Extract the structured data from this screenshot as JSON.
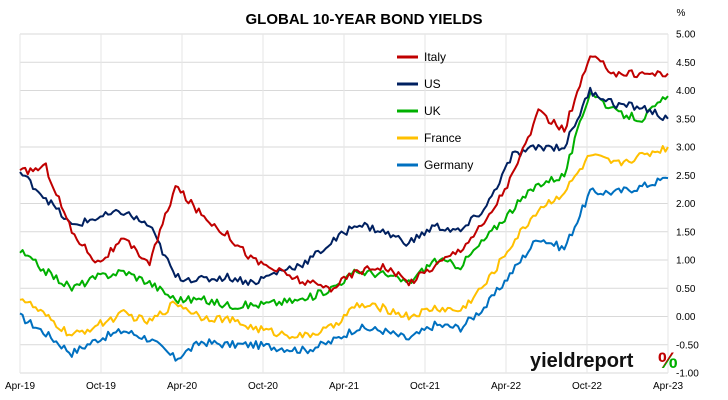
{
  "chart_data": {
    "type": "line",
    "title": "GLOBAL 10-YEAR BOND YIELDS",
    "y_unit": "%",
    "ylim": [
      -1.0,
      5.0
    ],
    "y_ticks": [
      "5.00",
      "4.50",
      "4.00",
      "3.50",
      "3.00",
      "2.50",
      "2.00",
      "1.50",
      "1.00",
      "0.50",
      "0.00",
      "-0.50",
      "-1.00"
    ],
    "x_tick_labels": [
      "Apr-19",
      "Oct-19",
      "Apr-20",
      "Oct-20",
      "Apr-21",
      "Oct-21",
      "Apr-22",
      "Oct-22",
      "Apr-23"
    ],
    "x": [
      "Apr-19",
      "Jun-19",
      "Aug-19",
      "Oct-19",
      "Dec-19",
      "Feb-20",
      "Mar-20",
      "Apr-20",
      "Jun-20",
      "Aug-20",
      "Oct-20",
      "Dec-20",
      "Feb-21",
      "Apr-21",
      "Jun-21",
      "Aug-21",
      "Oct-21",
      "Dec-21",
      "Feb-22",
      "Apr-22",
      "Jun-22",
      "Aug-22",
      "Oct-22",
      "Dec-22",
      "Feb-23",
      "Apr-23"
    ],
    "grid": true,
    "legend_position": "top-center",
    "series": [
      {
        "name": "Italy",
        "color": "#c00000",
        "values": [
          2.55,
          2.65,
          1.5,
          0.95,
          1.35,
          0.95,
          2.3,
          1.8,
          1.45,
          1.0,
          0.8,
          0.6,
          0.5,
          0.8,
          0.9,
          0.6,
          0.9,
          1.2,
          1.7,
          2.5,
          3.6,
          3.3,
          4.6,
          4.3,
          4.3,
          4.3
        ]
      },
      {
        "name": "US",
        "color": "#002060",
        "values": [
          2.55,
          2.1,
          1.6,
          1.75,
          1.85,
          1.6,
          0.7,
          0.65,
          0.7,
          0.6,
          0.8,
          0.95,
          1.3,
          1.65,
          1.5,
          1.3,
          1.6,
          1.5,
          1.95,
          2.85,
          3.0,
          3.0,
          4.0,
          3.75,
          3.7,
          3.5
        ]
      },
      {
        "name": "UK",
        "color": "#00b000",
        "values": [
          1.15,
          0.8,
          0.5,
          0.7,
          0.8,
          0.6,
          0.3,
          0.3,
          0.2,
          0.2,
          0.25,
          0.3,
          0.5,
          0.8,
          0.75,
          0.6,
          1.0,
          0.9,
          1.4,
          1.9,
          2.35,
          2.5,
          4.0,
          3.6,
          3.5,
          3.9
        ]
      },
      {
        "name": "France",
        "color": "#ffc000",
        "values": [
          0.35,
          0.0,
          -0.35,
          -0.15,
          0.05,
          -0.1,
          0.25,
          0.0,
          -0.05,
          -0.2,
          -0.3,
          -0.35,
          -0.2,
          0.2,
          0.15,
          0.0,
          0.15,
          0.1,
          0.6,
          1.3,
          1.9,
          2.2,
          2.85,
          2.7,
          2.85,
          3.0
        ]
      },
      {
        "name": "Germany",
        "color": "#0070c0",
        "values": [
          0.0,
          -0.3,
          -0.65,
          -0.4,
          -0.25,
          -0.4,
          -0.75,
          -0.45,
          -0.5,
          -0.5,
          -0.55,
          -0.6,
          -0.45,
          -0.2,
          -0.25,
          -0.4,
          -0.15,
          -0.2,
          0.2,
          0.8,
          1.4,
          1.2,
          2.2,
          2.2,
          2.3,
          2.45
        ]
      }
    ]
  },
  "logo": {
    "text": "yieldreport",
    "symbol": "%"
  }
}
